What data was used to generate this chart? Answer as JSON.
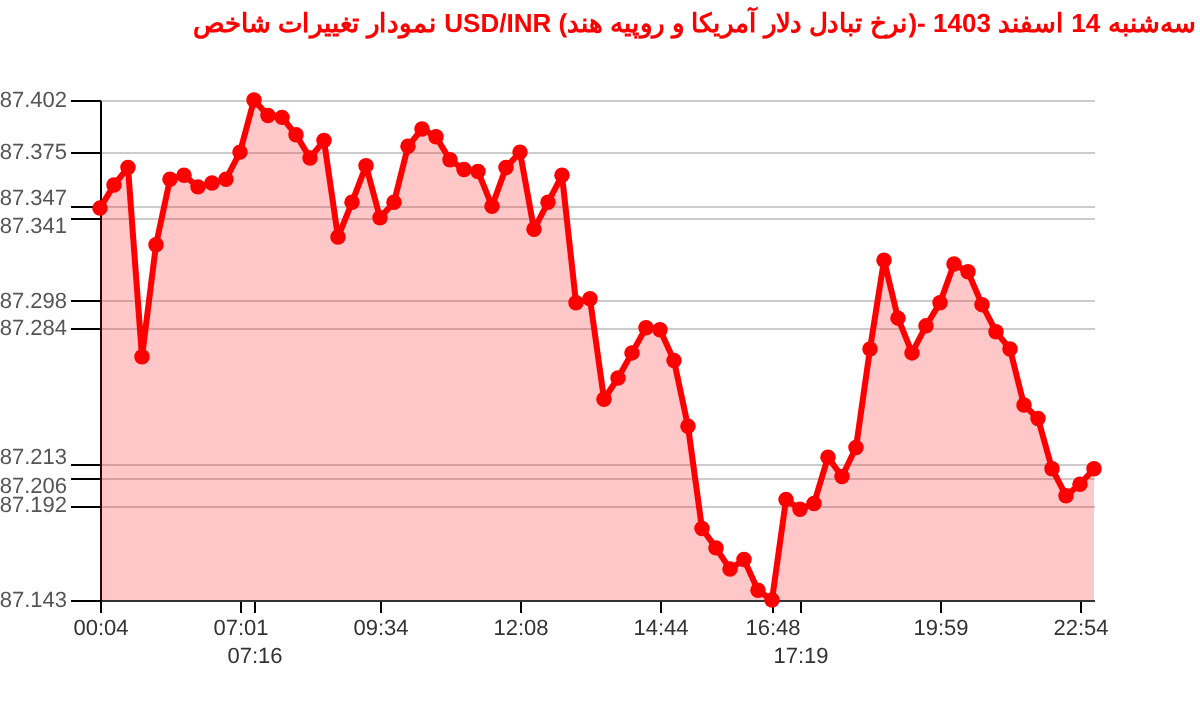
{
  "chart_data": {
    "type": "area",
    "title": "نمودار تغییرات شاخص USD/INR (نرخ تبادل دلار آمریکا و روپیه هند)- سه‌شنبه  14 اسفند 1403",
    "categories": [
      "00:04",
      null,
      null,
      null,
      null,
      null,
      null,
      null,
      null,
      null,
      "07:01",
      "07:16",
      null,
      null,
      null,
      null,
      null,
      null,
      null,
      null,
      "09:34",
      null,
      null,
      null,
      null,
      null,
      null,
      null,
      null,
      null,
      "12:08",
      null,
      null,
      null,
      null,
      null,
      null,
      null,
      null,
      null,
      "14:44",
      null,
      null,
      null,
      null,
      null,
      null,
      null,
      "16:48",
      null,
      "17:19",
      null,
      null,
      null,
      null,
      null,
      null,
      null,
      null,
      null,
      "19:59",
      null,
      null,
      null,
      null,
      null,
      null,
      null,
      null,
      null,
      "22:54",
      null
    ],
    "series": [
      {
        "color": "#ff0000",
        "values": [
          87.346,
          87.358,
          87.367,
          87.269,
          87.327,
          87.361,
          87.363,
          87.357,
          87.359,
          87.361,
          87.375,
          87.402,
          87.394,
          87.393,
          87.384,
          87.372,
          87.381,
          87.331,
          87.349,
          87.368,
          87.341,
          87.349,
          87.378,
          87.387,
          87.383,
          87.371,
          87.366,
          87.365,
          87.347,
          87.367,
          87.375,
          87.335,
          87.349,
          87.363,
          87.297,
          87.299,
          87.247,
          87.258,
          87.271,
          87.284,
          87.283,
          87.267,
          87.233,
          87.18,
          87.17,
          87.159,
          87.164,
          87.148,
          87.143,
          87.195,
          87.19,
          87.193,
          87.217,
          87.207,
          87.222,
          87.273,
          87.319,
          87.289,
          87.271,
          87.285,
          87.297,
          87.317,
          87.313,
          87.296,
          87.282,
          87.273,
          87.244,
          87.237,
          87.211,
          87.197,
          87.203,
          87.211
        ]
      }
    ],
    "ylim": [
      87.143,
      87.402
    ],
    "yticks": [
      87.143,
      87.192,
      87.206,
      87.213,
      87.284,
      87.298,
      87.341,
      87.347,
      87.375,
      87.402
    ],
    "grid": "y",
    "marker": "circle",
    "line_style": "solid"
  }
}
